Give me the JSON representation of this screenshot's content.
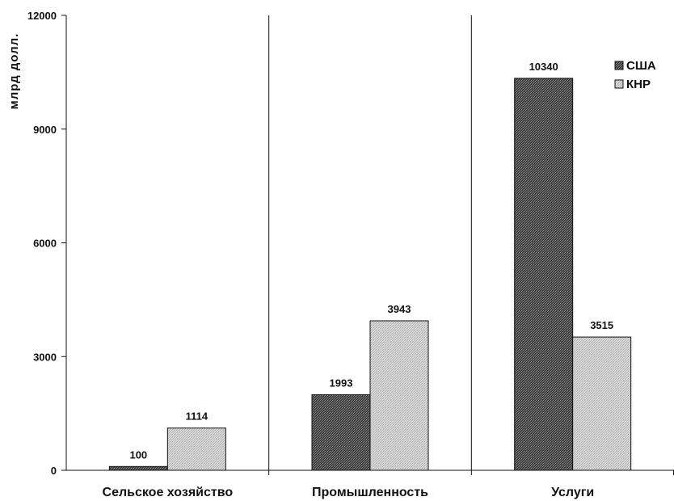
{
  "chart_data": {
    "type": "bar",
    "title": "",
    "ylabel": "млрд долл.",
    "xlabel": "",
    "ylim": [
      0,
      12000
    ],
    "yticks": [
      "0",
      "3000",
      "6000",
      "9000",
      "12000"
    ],
    "categories": [
      "Сельское хозяйство",
      "Промышленность",
      "Услуги"
    ],
    "series": [
      {
        "name": "США",
        "values": [
          100,
          1993,
          10340
        ],
        "labels": [
          "100",
          "1993",
          "10340"
        ],
        "color": "#555555"
      },
      {
        "name": "КНР",
        "values": [
          1114,
          3943,
          3515
        ],
        "labels": [
          "1114",
          "3943",
          "3515"
        ],
        "color": "#cfcfcf"
      }
    ],
    "legend_position": "top-right",
    "grid": false,
    "category_separators": true
  }
}
